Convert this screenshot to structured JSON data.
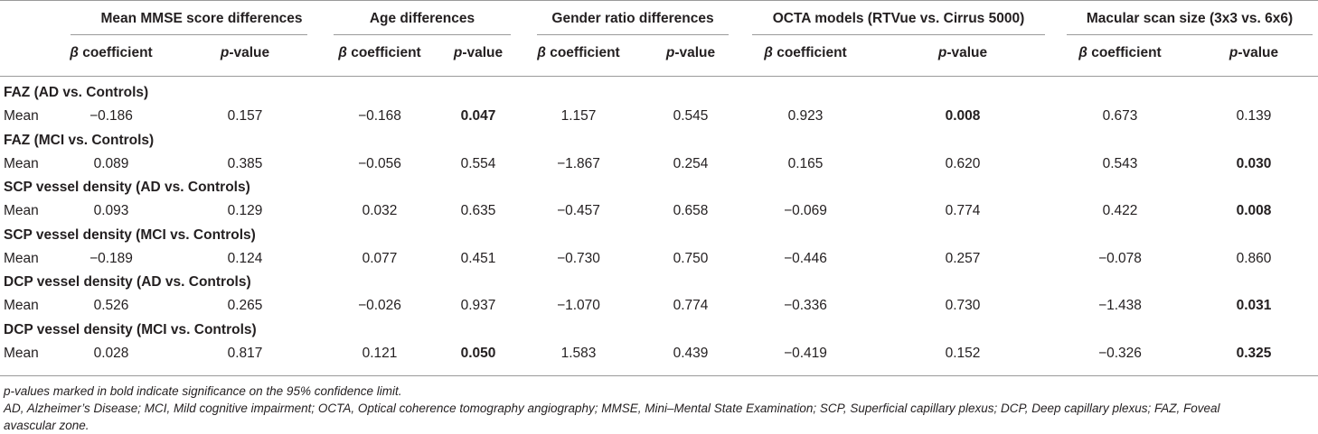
{
  "table": {
    "groups": [
      {
        "label": "Mean MMSE score differences"
      },
      {
        "label": "Age differences"
      },
      {
        "label": "Gender ratio differences"
      },
      {
        "label": "OCTA models (RTVue vs. Cirrus 5000)"
      },
      {
        "label": "Macular scan size (3x3 vs. 6x6)"
      }
    ],
    "subheaders": {
      "beta_symbol": "β",
      "beta_text": "coefficient",
      "p_letter": "p",
      "p_text": "-value"
    },
    "sections": [
      {
        "title": "FAZ (AD vs. Controls)",
        "row_label": "Mean",
        "values": [
          "−0.186",
          "0.157",
          "−0.168",
          "0.047",
          "1.157",
          "0.545",
          "0.923",
          "0.008",
          "0.673",
          "0.139"
        ]
      },
      {
        "title": "FAZ (MCI vs. Controls)",
        "row_label": "Mean",
        "values": [
          "0.089",
          "0.385",
          "−0.056",
          "0.554",
          "−1.867",
          "0.254",
          "0.165",
          "0.620",
          "0.543",
          "0.030"
        ]
      },
      {
        "title": "SCP vessel density (AD vs. Controls)",
        "row_label": "Mean",
        "values": [
          "0.093",
          "0.129",
          "0.032",
          "0.635",
          "−0.457",
          "0.658",
          "−0.069",
          "0.774",
          "0.422",
          "0.008"
        ]
      },
      {
        "title": "SCP vessel density (MCI vs. Controls)",
        "row_label": "Mean",
        "values": [
          "−0.189",
          "0.124",
          "0.077",
          "0.451",
          "−0.730",
          "0.750",
          "−0.446",
          "0.257",
          "−0.078",
          "0.860"
        ]
      },
      {
        "title": "DCP vessel density (AD vs. Controls)",
        "row_label": "Mean",
        "values": [
          "0.526",
          "0.265",
          "−0.026",
          "0.937",
          "−1.070",
          "0.774",
          "−0.336",
          "0.730",
          "−1.438",
          "0.031"
        ]
      },
      {
        "title": "DCP vessel density (MCI vs. Controls)",
        "row_label": "Mean",
        "values": [
          "0.028",
          "0.817",
          "0.121",
          "0.050",
          "1.583",
          "0.439",
          "−0.419",
          "0.152",
          "−0.326",
          "0.325"
        ]
      }
    ],
    "bold_cells": [
      [
        0,
        3
      ],
      [
        0,
        7
      ],
      [
        1,
        9
      ],
      [
        2,
        9
      ],
      [
        4,
        9
      ],
      [
        5,
        3
      ],
      [
        5,
        9
      ]
    ]
  },
  "footnotes": {
    "line1": "p-values marked in bold indicate significance on the 95% confidence limit.",
    "line2": "AD, Alzheimer’s Disease; MCI, Mild cognitive impairment; OCTA, Optical coherence tomography angiography; MMSE, Mini–Mental State Examination; SCP, Superficial capillary plexus; DCP, Deep capillary plexus; FAZ, Foveal",
    "line3": "avascular zone."
  }
}
